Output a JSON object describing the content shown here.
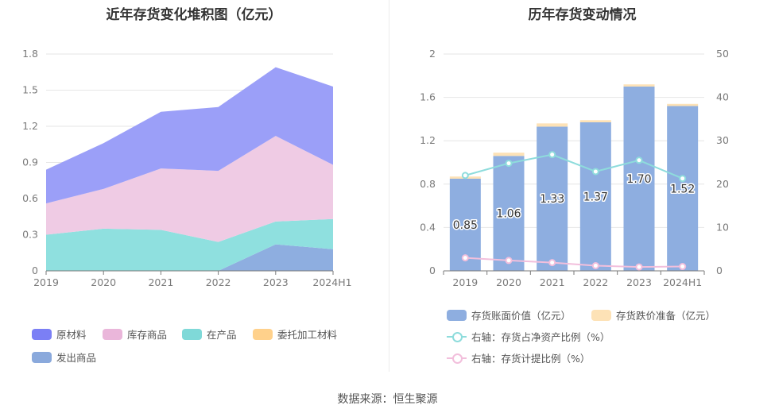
{
  "source_text": "数据来源：恒生聚源",
  "chart_data": [
    {
      "type": "area",
      "stacked": true,
      "title": "近年存货变化堆积图（亿元）",
      "categories": [
        "2019",
        "2020",
        "2021",
        "2022",
        "2023",
        "2024H1"
      ],
      "ylim": [
        0,
        1.8
      ],
      "yticks": [
        "0",
        "0.3",
        "0.6",
        "0.9",
        "1.2",
        "1.5",
        "1.8"
      ],
      "series": [
        {
          "name": "发出商品",
          "color": "#8eaee0",
          "values": [
            0,
            0,
            0,
            0,
            0.22,
            0.18
          ]
        },
        {
          "name": "委托加工材料",
          "color": "#ffd694",
          "values": [
            0,
            0,
            0,
            0,
            0,
            0
          ]
        },
        {
          "name": "在产品",
          "color": "#8fe0df",
          "values": [
            0.3,
            0.35,
            0.34,
            0.24,
            0.19,
            0.25
          ]
        },
        {
          "name": "库存商品",
          "color": "#efcbe4",
          "values": [
            0.26,
            0.33,
            0.51,
            0.59,
            0.71,
            0.45
          ]
        },
        {
          "name": "原材料",
          "color": "#9b9ff8",
          "values": [
            0.28,
            0.38,
            0.47,
            0.53,
            0.57,
            0.65
          ]
        }
      ],
      "legend": [
        {
          "name": "原材料",
          "color": "#7b7ff5"
        },
        {
          "name": "库存商品",
          "color": "#eab6da"
        },
        {
          "name": "在产品",
          "color": "#7fd9d8"
        },
        {
          "name": "委托加工材料",
          "color": "#ffd18b"
        },
        {
          "name": "发出商品",
          "color": "#8aa9dc"
        }
      ]
    },
    {
      "type": "bar",
      "title": "历年存货变动情况",
      "categories": [
        "2019",
        "2020",
        "2021",
        "2022",
        "2023",
        "2024H1"
      ],
      "ylim": [
        0,
        2
      ],
      "yticks": [
        "0",
        "0.4",
        "0.8",
        "1.2",
        "1.6",
        "2"
      ],
      "y2lim": [
        0,
        50
      ],
      "y2ticks": [
        "0",
        "10",
        "20",
        "30",
        "40",
        "50"
      ],
      "series": [
        {
          "name": "存货账面价值（亿元）",
          "kind": "bar",
          "color": "#8eaee0",
          "values": [
            0.85,
            1.06,
            1.33,
            1.37,
            1.7,
            1.52
          ],
          "labels": [
            "0.85",
            "1.06",
            "1.33",
            "1.37",
            "1.70",
            "1.52"
          ]
        },
        {
          "name": "存货跌价准备（亿元）",
          "kind": "bar-stack",
          "color": "#fde2b6",
          "values": [
            0.02,
            0.03,
            0.03,
            0.02,
            0.02,
            0.02
          ]
        },
        {
          "name": "右轴：存货占净资产比例（%）",
          "kind": "line",
          "axis": "right",
          "color": "#8edcdc",
          "values": [
            22.0,
            24.8,
            26.8,
            22.9,
            25.5,
            21.3
          ]
        },
        {
          "name": "右轴：存货计提比例（%）",
          "kind": "line",
          "axis": "right",
          "color": "#f2bfdc",
          "values": [
            3.0,
            2.4,
            1.9,
            1.2,
            0.9,
            1.0
          ]
        }
      ]
    }
  ]
}
